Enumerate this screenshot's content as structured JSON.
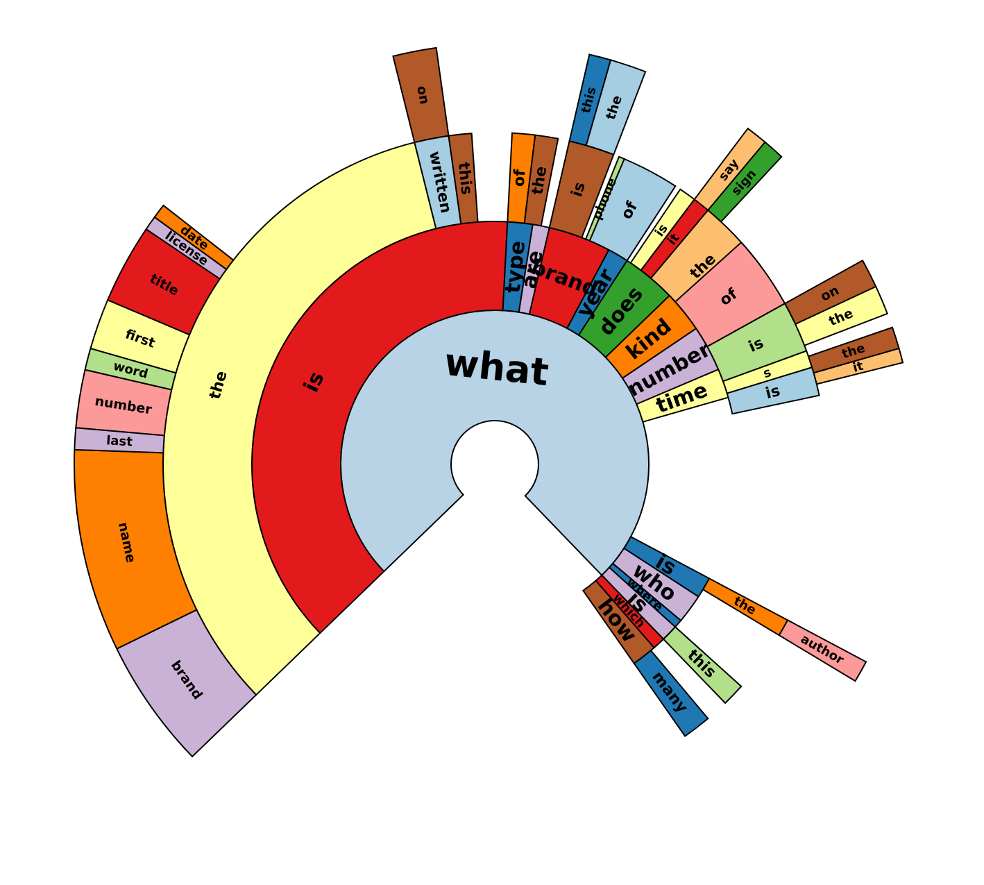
{
  "chart_data": {
    "type": "sunburst",
    "root_label": "what",
    "colors": {
      "light_blue": "#a6cee3",
      "root_blue": "#b8d3e6",
      "blue": "#1f78b4",
      "light_green": "#b2df8a",
      "green": "#33a02c",
      "pink": "#fb9a99",
      "red": "#e31a1c",
      "light_orange": "#fdbf6f",
      "orange": "#ff7f00",
      "lavender": "#cab2d6",
      "purple": "#6a3d9a",
      "yellow": "#ffff99",
      "brown": "#b15928"
    },
    "nodes": [
      {
        "id": "what",
        "label": "what",
        "parent": null,
        "start": 0,
        "end": 270,
        "color": "root_blue"
      },
      {
        "id": "is",
        "label": "is",
        "parent": "what",
        "start": 0,
        "end": 137,
        "color": "red"
      },
      {
        "id": "is-the",
        "label": "the",
        "parent": "is",
        "start": 0,
        "end": 120,
        "color": "yellow"
      },
      {
        "id": "is-the-brand",
        "label": "brand",
        "parent": "is-the",
        "start": 0,
        "end": 18,
        "color": "lavender"
      },
      {
        "id": "is-the-name",
        "label": "name",
        "parent": "is-the",
        "start": 18,
        "end": 46,
        "color": "orange"
      },
      {
        "id": "is-the-last",
        "label": "last",
        "parent": "is-the",
        "start": 46,
        "end": 49,
        "color": "lavender"
      },
      {
        "id": "is-the-number",
        "label": "number",
        "parent": "is-the",
        "start": 49,
        "end": 57,
        "color": "pink"
      },
      {
        "id": "is-the-word",
        "label": "word",
        "parent": "is-the",
        "start": 57,
        "end": 60,
        "color": "light_green"
      },
      {
        "id": "is-the-first",
        "label": "first",
        "parent": "is-the",
        "start": 60,
        "end": 67,
        "color": "yellow"
      },
      {
        "id": "is-the-title",
        "label": "title",
        "parent": "is-the",
        "start": 67,
        "end": 78,
        "color": "red"
      },
      {
        "id": "is-the-license",
        "label": "license",
        "parent": "is-the",
        "start": 78,
        "end": 80,
        "color": "lavender"
      },
      {
        "id": "is-the-date",
        "label": "date",
        "parent": "is-the",
        "start": 80,
        "end": 82,
        "color": "orange"
      },
      {
        "id": "is-written",
        "label": "written",
        "parent": "is",
        "start": 120,
        "end": 126,
        "color": "light_blue"
      },
      {
        "id": "is-written-on",
        "label": "on",
        "parent": "is-written",
        "start": 120,
        "end": 126,
        "color": "brown"
      },
      {
        "id": "is-this",
        "label": "this",
        "parent": "is",
        "start": 126,
        "end": 130,
        "color": "brown"
      },
      {
        "id": "type",
        "label": "type",
        "parent": "what",
        "start": 137,
        "end": 143,
        "color": "blue"
      },
      {
        "id": "type-of",
        "label": "of",
        "parent": "type",
        "start": 137,
        "end": 141,
        "color": "orange"
      },
      {
        "id": "type-the",
        "label": "the",
        "parent": "type",
        "start": 141,
        "end": 145,
        "color": "brown"
      },
      {
        "id": "are",
        "label": "are",
        "parent": "what",
        "start": 143,
        "end": 147,
        "color": "lavender"
      },
      {
        "id": "brand",
        "label": "brand",
        "parent": "what",
        "start": 147,
        "end": 162,
        "color": "red"
      },
      {
        "id": "brand-is",
        "label": "is",
        "parent": "brand",
        "start": 147,
        "end": 155,
        "color": "brown"
      },
      {
        "id": "brand-is-this",
        "label": "this",
        "parent": "brand-is",
        "start": 147,
        "end": 150,
        "color": "blue"
      },
      {
        "id": "brand-is-the",
        "label": "the",
        "parent": "brand-is",
        "start": 150,
        "end": 155,
        "color": "light_blue"
      },
      {
        "id": "brand-phone",
        "label": "phone",
        "parent": "brand",
        "start": 156,
        "end": 157,
        "color": "light_green"
      },
      {
        "id": "brand-of",
        "label": "of",
        "parent": "brand",
        "start": 157,
        "end": 167,
        "color": "light_blue"
      },
      {
        "id": "year",
        "label": "year",
        "parent": "what",
        "start": 162,
        "end": 167,
        "color": "blue"
      },
      {
        "id": "year-is",
        "label": "is",
        "parent": "year",
        "start": 168,
        "end": 171,
        "color": "yellow"
      },
      {
        "id": "does",
        "label": "does",
        "parent": "what",
        "start": 167,
        "end": 180,
        "color": "green"
      },
      {
        "id": "does-it",
        "label": "it",
        "parent": "does",
        "start": 171,
        "end": 174,
        "color": "red"
      },
      {
        "id": "does-it-say",
        "label": "say",
        "parent": "does-it",
        "start": 171,
        "end": 174,
        "color": "light_orange"
      },
      {
        "id": "does-the",
        "label": "the",
        "parent": "does",
        "start": 174,
        "end": 187,
        "color": "light_orange"
      },
      {
        "id": "does-the-sign",
        "label": "sign",
        "parent": "does-the",
        "start": 174,
        "end": 177,
        "color": "green"
      },
      {
        "id": "kind",
        "label": "kind",
        "parent": "what",
        "start": 180,
        "end": 190,
        "color": "orange"
      },
      {
        "id": "kind-of",
        "label": "of",
        "parent": "kind",
        "start": 182,
        "end": 195,
        "color": "pink"
      },
      {
        "id": "number",
        "label": "number",
        "parent": "what",
        "start": 190,
        "end": 201,
        "color": "lavender"
      },
      {
        "id": "number-is",
        "label": "is",
        "parent": "number",
        "start": 195,
        "end": 204,
        "color": "light_green"
      },
      {
        "id": "number-is-on",
        "label": "on",
        "parent": "number-is",
        "start": 195,
        "end": 199,
        "color": "brown"
      },
      {
        "id": "number-is-the",
        "label": "the",
        "parent": "number-is",
        "start": 199,
        "end": 203,
        "color": "yellow"
      },
      {
        "id": "number-s",
        "label": "s",
        "parent": "number",
        "start": 204,
        "end": 207,
        "color": "yellow"
      },
      {
        "id": "number-s-the",
        "label": "the",
        "parent": "number-s",
        "start": 205,
        "end": 208,
        "color": "brown"
      },
      {
        "id": "number-s-it",
        "label": "it",
        "parent": "number-s",
        "start": 208,
        "end": 210,
        "color": "light_orange"
      },
      {
        "id": "time",
        "label": "time",
        "parent": "what",
        "start": 201,
        "end": 208,
        "color": "yellow"
      },
      {
        "id": "time-is",
        "label": "is",
        "parent": "time",
        "start": 207,
        "end": 212,
        "color": "light_blue"
      },
      {
        "id": "is2",
        "label": "is",
        "parent": "what",
        "start": 252,
        "end": 257,
        "color": "blue"
      },
      {
        "id": "is2-the",
        "label": "the",
        "parent": "is2",
        "start": 252,
        "end": 255,
        "color": "orange"
      },
      {
        "id": "is2-the-author",
        "label": "author",
        "parent": "is2-the",
        "start": 252,
        "end": 255,
        "color": "pink"
      },
      {
        "id": "who",
        "label": "who",
        "parent": "what",
        "start": 257,
        "end": 264,
        "color": "lavender"
      },
      {
        "id": "where",
        "label": "where",
        "parent": "what",
        "start": 264,
        "end": 266,
        "color": "blue"
      },
      {
        "id": "is3",
        "label": "is",
        "parent": "what",
        "start": 266,
        "end": 270,
        "color": "lavender"
      },
      {
        "id": "is3-this",
        "label": "this",
        "parent": "is3",
        "start": 266,
        "end": 270,
        "color": "light_green"
      },
      {
        "id": "which",
        "label": "which",
        "parent": "what",
        "start": 270,
        "end": 273,
        "color": "red"
      },
      {
        "id": "how",
        "label": "how",
        "parent": "what",
        "start": 273,
        "end": 279,
        "color": "brown"
      },
      {
        "id": "how-many",
        "label": "many",
        "parent": "how",
        "start": 274,
        "end": 279,
        "color": "blue"
      }
    ]
  }
}
